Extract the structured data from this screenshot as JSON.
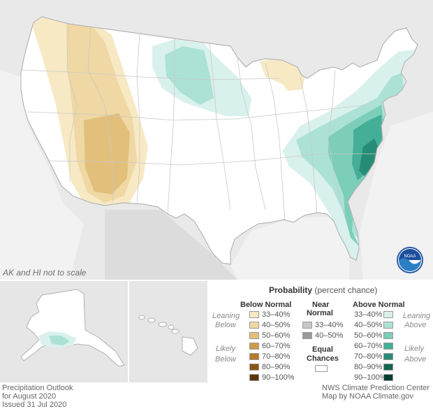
{
  "map": {
    "note": "AK and HI not to scale",
    "logo_text": "NOAA"
  },
  "legend": {
    "title_bold": "Probability",
    "title_rest": "(percent chance)",
    "below_header": "Below Normal",
    "near_header_1": "Near",
    "near_header_2": "Normal",
    "above_header": "Above Normal",
    "leaning_below_1": "Leaning",
    "leaning_below_2": "Below",
    "likely_below_1": "Likely",
    "likely_below_2": "Below",
    "leaning_above_1": "Leaning",
    "leaning_above_2": "Above",
    "likely_above_1": "Likely",
    "likely_above_2": "Above",
    "equal_1": "Equal",
    "equal_2": "Chances",
    "below": [
      {
        "label": "33–40%",
        "color": "#f7e9c4"
      },
      {
        "label": "40–50%",
        "color": "#efd8a3"
      },
      {
        "label": "50–60%",
        "color": "#e2bf7b"
      },
      {
        "label": "60–70%",
        "color": "#cf9a4a"
      },
      {
        "label": "70–80%",
        "color": "#b7792c"
      },
      {
        "label": "80–90%",
        "color": "#8c5617"
      },
      {
        "label": "90–100%",
        "color": "#5c3608"
      }
    ],
    "near": [
      {
        "label": "33–40%",
        "color": "#c8c8c8"
      },
      {
        "label": "40–50%",
        "color": "#9a9a9a"
      }
    ],
    "above": [
      {
        "label": "33–40%",
        "color": "#d9f1ec"
      },
      {
        "label": "40–50%",
        "color": "#ace2d6"
      },
      {
        "label": "50–60%",
        "color": "#7cceb9"
      },
      {
        "label": "60–70%",
        "color": "#45ae96"
      },
      {
        "label": "70–80%",
        "color": "#278c75"
      },
      {
        "label": "80–90%",
        "color": "#126752"
      },
      {
        "label": "90–100%",
        "color": "#053f31"
      }
    ]
  },
  "footer": {
    "left_1": "Precipitation Outlook",
    "left_2": "for August 2020",
    "left_3": "Issued 31 Jul 2020",
    "right_1": "NWS Climate Prediction Center",
    "right_2": "Map by NOAA Climate.gov"
  }
}
